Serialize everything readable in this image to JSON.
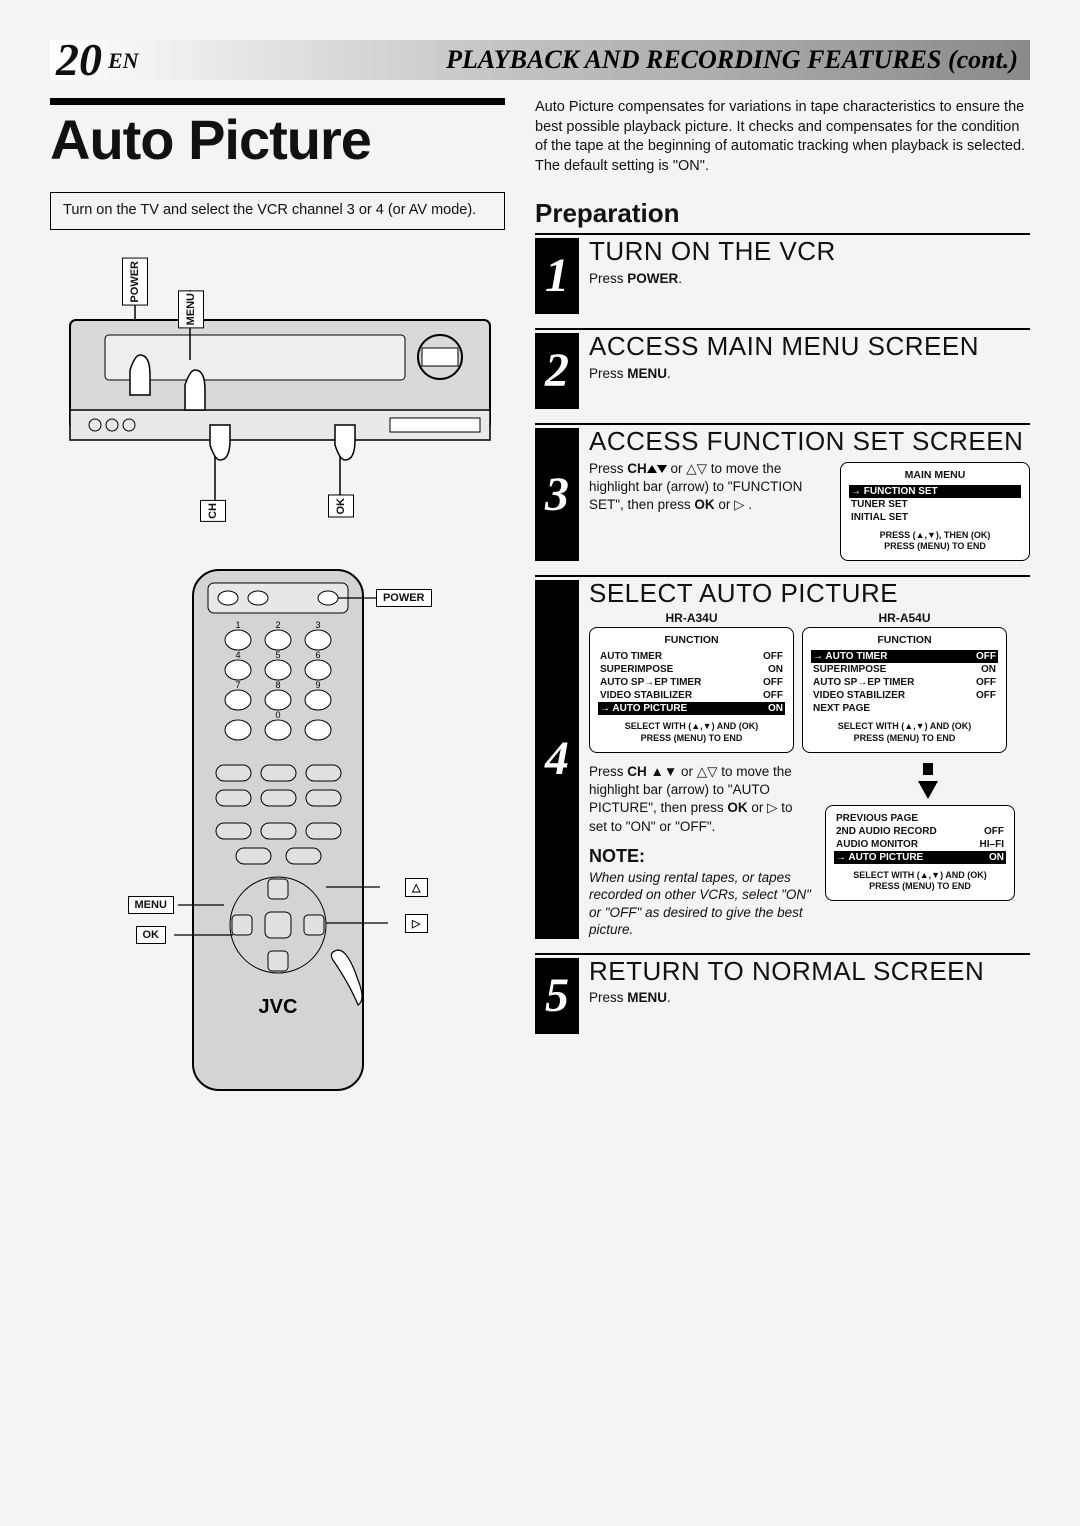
{
  "header": {
    "page_number": "20",
    "lang": "EN",
    "title": "PLAYBACK AND RECORDING FEATURES (cont.)"
  },
  "main_title": "Auto Picture",
  "intro": "Auto Picture compensates for variations in tape characteristics to ensure the best possible playback picture. It checks and compensates for the condition of the tape at the beginning of automatic tracking when playback is selected. The default setting is \"ON\".",
  "box_note": "Turn on the TV and select the VCR channel 3 or 4 (or AV mode).",
  "vcr_labels": {
    "power": "POWER",
    "menu": "MENU",
    "ok": "OK",
    "ch": "CH"
  },
  "remote_labels": {
    "power": "POWER",
    "menu": "MENU",
    "ok": "OK",
    "brand": "JVC",
    "tri_up": "△",
    "tri_right": "▷"
  },
  "prep_heading": "Preparation",
  "steps": [
    {
      "n": "1",
      "title": "TURN ON THE VCR",
      "text_pre": "Press ",
      "text_bold": "POWER",
      "text_post": "."
    },
    {
      "n": "2",
      "title": "ACCESS MAIN MENU SCREEN",
      "text_pre": "Press ",
      "text_bold": "MENU",
      "text_post": "."
    },
    {
      "n": "3",
      "title": "ACCESS FUNCTION SET SCREEN",
      "text3_a": "Press ",
      "text3_b": "CH",
      "text3_c": " or △▽ to move the highlight bar (arrow) to \"FUNCTION SET\", then press ",
      "text3_d": "OK",
      "text3_e": " or ▷ ."
    },
    {
      "n": "4",
      "title": "SELECT AUTO PICTURE",
      "text4_a": "Press ",
      "text4_b": "CH",
      "text4_c": " ▲▼ or △▽ to move the highlight bar (arrow) to \"AUTO PICTURE\", then press ",
      "text4_d": "OK",
      "text4_e": " or ▷ to set to \"ON\" or \"OFF\"."
    },
    {
      "n": "5",
      "title": "RETURN TO NORMAL SCREEN",
      "text_pre": "Press ",
      "text_bold": "MENU",
      "text_post": "."
    }
  ],
  "main_menu_screen": {
    "title": "MAIN MENU",
    "rows": [
      {
        "label": "FUNCTION SET",
        "hl": true,
        "arrow": true
      },
      {
        "label": "TUNER SET"
      },
      {
        "label": "INITIAL SET"
      }
    ],
    "foot1": "PRESS (▲,▼), THEN (OK)",
    "foot2": "PRESS (MENU) TO END"
  },
  "models": {
    "a": "HR-A34U",
    "b": "HR-A54U"
  },
  "func_screen_a": {
    "title": "FUNCTION",
    "rows": [
      {
        "label": "AUTO TIMER",
        "val": "OFF"
      },
      {
        "label": "SUPERIMPOSE",
        "val": "ON"
      },
      {
        "label": "AUTO SP→EP TIMER",
        "val": "OFF"
      },
      {
        "label": "VIDEO STABILIZER",
        "val": "OFF"
      },
      {
        "label": "AUTO PICTURE",
        "val": "ON",
        "hl": true,
        "arrow": true
      }
    ],
    "foot1": "SELECT WITH (▲,▼) AND (OK)",
    "foot2": "PRESS (MENU) TO END"
  },
  "func_screen_b1": {
    "title": "FUNCTION",
    "rows": [
      {
        "label": "AUTO TIMER",
        "val": "OFF",
        "hl": true,
        "arrow": true
      },
      {
        "label": "SUPERIMPOSE",
        "val": "ON"
      },
      {
        "label": "AUTO SP→EP TIMER",
        "val": "OFF"
      },
      {
        "label": "VIDEO STABILIZER",
        "val": "OFF"
      },
      {
        "label": "NEXT PAGE",
        "val": ""
      }
    ],
    "foot1": "SELECT WITH (▲,▼) AND (OK)",
    "foot2": "PRESS (MENU) TO END"
  },
  "func_screen_b2": {
    "rows": [
      {
        "label": "PREVIOUS PAGE",
        "val": ""
      },
      {
        "label": "2ND AUDIO RECORD",
        "val": "OFF"
      },
      {
        "label": "AUDIO MONITOR",
        "val": "HI–FI"
      },
      {
        "label": "AUTO PICTURE",
        "val": "ON",
        "hl": true,
        "arrow": true
      }
    ],
    "foot1": "SELECT WITH (▲,▼) AND (OK)",
    "foot2": "PRESS (MENU) TO END"
  },
  "note_heading": "NOTE:",
  "note_text": "When using rental tapes, or tapes recorded on other VCRs, select \"ON\" or \"OFF\" as desired to give the best picture."
}
